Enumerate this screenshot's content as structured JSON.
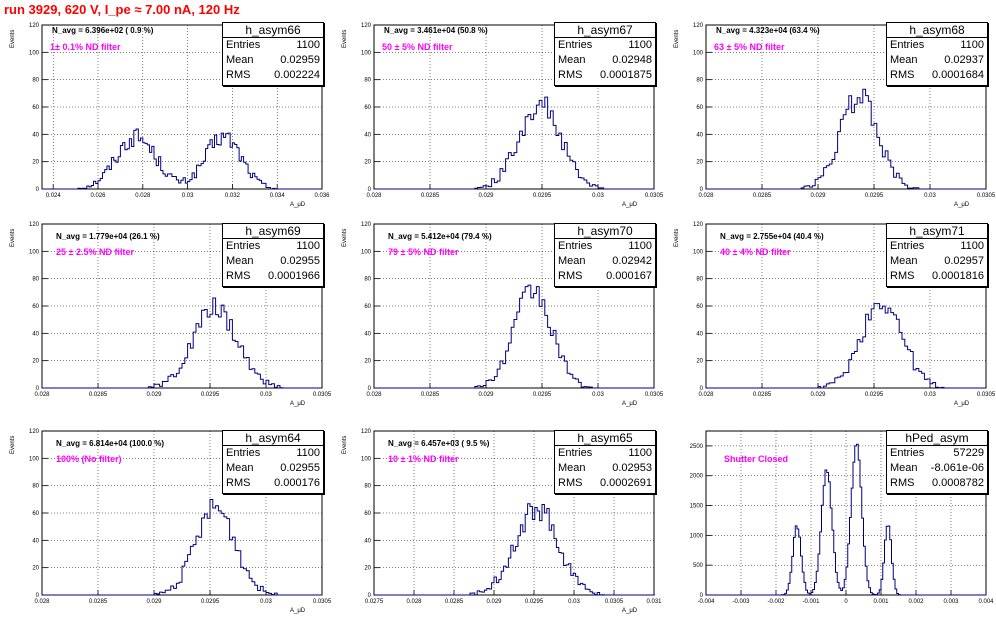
{
  "page": {
    "title": "run 3929,   620 V, I_pe ≈ 7.00 nA, 120 Hz"
  },
  "chart_data": [
    {
      "type": "histogram",
      "hist_name": "h_asym66",
      "stats": {
        "entries_label": "Entries",
        "entries": "1100",
        "mean_label": "Mean",
        "mean": "0.02959",
        "rms_label": "RMS",
        "rms": "0.002224"
      },
      "n_avg_text": "N_avg = 6.396e+02 ( 0.9 %)",
      "filter_text": "1± 0.1% ND filter",
      "xlabel": "A_μD",
      "ylabel": "Events",
      "xlim": [
        0.0235,
        0.036
      ],
      "ylim": [
        0,
        120
      ],
      "xticks": [
        "0.024",
        "0.026",
        "0.028",
        "0.03",
        "0.032",
        "0.034",
        "0.036"
      ],
      "yticks": [
        "0",
        "20",
        "40",
        "60",
        "80",
        "100",
        "120"
      ],
      "xtick_values": [
        0.024,
        0.026,
        0.028,
        0.03,
        0.032,
        0.034,
        0.036
      ],
      "ytick_values": [
        0,
        20,
        40,
        60,
        80,
        100,
        120
      ],
      "peaks": [
        {
          "center": 0.0277,
          "sigma": 0.0009,
          "height": 38
        },
        {
          "center": 0.0316,
          "sigma": 0.0008,
          "height": 38
        }
      ],
      "bin_width": 0.0001
    },
    {
      "type": "histogram",
      "hist_name": "h_asym67",
      "stats": {
        "entries_label": "Entries",
        "entries": "1100",
        "mean_label": "Mean",
        "mean": "0.02948",
        "rms_label": "RMS",
        "rms": "0.0001875"
      },
      "n_avg_text": "N_avg = 3.461e+04 (50.8 %)",
      "filter_text": "50 ± 5% ND filter",
      "xlabel": "A_μD",
      "ylabel": "Events",
      "xlim": [
        0.028,
        0.0305
      ],
      "ylim": [
        0,
        120
      ],
      "xticks": [
        "0.028",
        "0.0285",
        "0.029",
        "0.0295",
        "0.03",
        "0.0305"
      ],
      "yticks": [
        "0",
        "20",
        "40",
        "60",
        "80",
        "100",
        "120"
      ],
      "xtick_values": [
        0.028,
        0.0285,
        0.029,
        0.0295,
        0.03,
        0.0305
      ],
      "ytick_values": [
        0,
        20,
        40,
        60,
        80,
        100,
        120
      ],
      "peaks": [
        {
          "center": 0.02948,
          "sigma": 0.000187,
          "height": 62
        }
      ],
      "bin_width": 2.5e-05
    },
    {
      "type": "histogram",
      "hist_name": "h_asym68",
      "stats": {
        "entries_label": "Entries",
        "entries": "1100",
        "mean_label": "Mean",
        "mean": "0.02937",
        "rms_label": "RMS",
        "rms": "0.0001684"
      },
      "n_avg_text": "N_avg = 4.323e+04 (63.4 %)",
      "filter_text": "63 ± 5% ND filter",
      "xlabel": "A_μD",
      "ylabel": "Events",
      "xlim": [
        0.028,
        0.0305
      ],
      "ylim": [
        0,
        120
      ],
      "xticks": [
        "0.028",
        "0.0285",
        "0.029",
        "0.0295",
        "0.03",
        "0.0305"
      ],
      "yticks": [
        "0",
        "20",
        "40",
        "60",
        "80",
        "100",
        "120"
      ],
      "xtick_values": [
        0.028,
        0.0285,
        0.029,
        0.0295,
        0.03,
        0.0305
      ],
      "ytick_values": [
        0,
        20,
        40,
        60,
        80,
        100,
        120
      ],
      "peaks": [
        {
          "center": 0.02937,
          "sigma": 0.000168,
          "height": 68
        }
      ],
      "bin_width": 2.5e-05
    },
    {
      "type": "histogram",
      "hist_name": "h_asym69",
      "stats": {
        "entries_label": "Entries",
        "entries": "1100",
        "mean_label": "Mean",
        "mean": "0.02955",
        "rms_label": "RMS",
        "rms": "0.0001966"
      },
      "n_avg_text": "N_avg = 1.779e+04 (26.1 %)",
      "filter_text": "25 ± 2.5% ND filter",
      "xlabel": "A_μD",
      "ylabel": "Events",
      "xlim": [
        0.028,
        0.0305
      ],
      "ylim": [
        0,
        120
      ],
      "xticks": [
        "0.028",
        "0.0285",
        "0.029",
        "0.0295",
        "0.03",
        "0.0305"
      ],
      "yticks": [
        "0",
        "20",
        "40",
        "60",
        "80",
        "100",
        "120"
      ],
      "xtick_values": [
        0.028,
        0.0285,
        0.029,
        0.0295,
        0.03,
        0.0305
      ],
      "ytick_values": [
        0,
        20,
        40,
        60,
        80,
        100,
        120
      ],
      "peaks": [
        {
          "center": 0.02955,
          "sigma": 0.000197,
          "height": 58
        }
      ],
      "bin_width": 2.5e-05
    },
    {
      "type": "histogram",
      "hist_name": "h_asym70",
      "stats": {
        "entries_label": "Entries",
        "entries": "1100",
        "mean_label": "Mean",
        "mean": "0.02942",
        "rms_label": "RMS",
        "rms": "0.000167"
      },
      "n_avg_text": "N_avg = 5.412e+04 (79.4 %)",
      "filter_text": "79 ± 5% ND filter",
      "xlabel": "A_μD",
      "ylabel": "Events",
      "xlim": [
        0.028,
        0.0305
      ],
      "ylim": [
        0,
        120
      ],
      "xticks": [
        "0.028",
        "0.0285",
        "0.029",
        "0.0295",
        "0.03",
        "0.0305"
      ],
      "yticks": [
        "0",
        "20",
        "40",
        "60",
        "80",
        "100",
        "120"
      ],
      "xtick_values": [
        0.028,
        0.0285,
        0.029,
        0.0295,
        0.03,
        0.0305
      ],
      "ytick_values": [
        0,
        20,
        40,
        60,
        80,
        100,
        120
      ],
      "peaks": [
        {
          "center": 0.02942,
          "sigma": 0.000167,
          "height": 72
        }
      ],
      "bin_width": 2.5e-05
    },
    {
      "type": "histogram",
      "hist_name": "h_asym71",
      "stats": {
        "entries_label": "Entries",
        "entries": "1100",
        "mean_label": "Mean",
        "mean": "0.02957",
        "rms_label": "RMS",
        "rms": "0.0001816"
      },
      "n_avg_text": "N_avg = 2.755e+04 (40.4 %)",
      "filter_text": "40 ± 4% ND filter",
      "xlabel": "A_μD",
      "ylabel": "Events",
      "xlim": [
        0.028,
        0.0305
      ],
      "ylim": [
        0,
        120
      ],
      "xticks": [
        "0.028",
        "0.0285",
        "0.029",
        "0.0295",
        "0.03",
        "0.0305"
      ],
      "yticks": [
        "0",
        "20",
        "40",
        "60",
        "80",
        "100",
        "120"
      ],
      "xtick_values": [
        0.028,
        0.0285,
        0.029,
        0.0295,
        0.03,
        0.0305
      ],
      "ytick_values": [
        0,
        20,
        40,
        60,
        80,
        100,
        120
      ],
      "peaks": [
        {
          "center": 0.02957,
          "sigma": 0.000182,
          "height": 64
        }
      ],
      "bin_width": 2.5e-05
    },
    {
      "type": "histogram",
      "hist_name": "h_asym64",
      "stats": {
        "entries_label": "Entries",
        "entries": "1100",
        "mean_label": "Mean",
        "mean": "0.02955",
        "rms_label": "RMS",
        "rms": "0.000176"
      },
      "n_avg_text": "N_avg = 6.814e+04 (100.0 %)",
      "filter_text": "100% (No filter)",
      "xlabel": "A_μD",
      "ylabel": "Events",
      "xlim": [
        0.028,
        0.0305
      ],
      "ylim": [
        0,
        120
      ],
      "xticks": [
        "0.028",
        "0.0285",
        "0.029",
        "0.0295",
        "0.03",
        "0.0305"
      ],
      "yticks": [
        "0",
        "20",
        "40",
        "60",
        "80",
        "100",
        "120"
      ],
      "xtick_values": [
        0.028,
        0.0285,
        0.029,
        0.0295,
        0.03,
        0.0305
      ],
      "ytick_values": [
        0,
        20,
        40,
        60,
        80,
        100,
        120
      ],
      "peaks": [
        {
          "center": 0.02955,
          "sigma": 0.000176,
          "height": 64
        }
      ],
      "bin_width": 2.5e-05
    },
    {
      "type": "histogram",
      "hist_name": "h_asym65",
      "stats": {
        "entries_label": "Entries",
        "entries": "1100",
        "mean_label": "Mean",
        "mean": "0.02953",
        "rms_label": "RMS",
        "rms": "0.0002691"
      },
      "n_avg_text": "N_avg = 6.457e+03 ( 9.5 %)",
      "filter_text": "10 ± 1% ND filter",
      "xlabel": "A_μD",
      "ylabel": "Events",
      "xlim": [
        0.0275,
        0.031
      ],
      "ylim": [
        0,
        120
      ],
      "xticks": [
        "0.0275",
        "0.028",
        "0.0285",
        "0.029",
        "0.0295",
        "0.03",
        "0.0305",
        "0.031"
      ],
      "yticks": [
        "0",
        "20",
        "40",
        "60",
        "80",
        "100",
        "120"
      ],
      "xtick_values": [
        0.0275,
        0.028,
        0.0285,
        0.029,
        0.0295,
        0.03,
        0.0305,
        0.031
      ],
      "ytick_values": [
        0,
        20,
        40,
        60,
        80,
        100,
        120
      ],
      "peaks": [
        {
          "center": 0.02953,
          "sigma": 0.000269,
          "height": 64
        }
      ],
      "bin_width": 3e-05
    },
    {
      "type": "histogram",
      "hist_name": "hPed_asym",
      "stats": {
        "entries_label": "Entries",
        "entries": "57229",
        "mean_label": "Mean",
        "mean": "-8.061e-06",
        "rms_label": "RMS",
        "rms": "0.0008782"
      },
      "n_avg_text": "",
      "filter_text": "Shutter Closed",
      "xlabel": "",
      "ylabel": "",
      "xlim": [
        -0.004,
        0.004
      ],
      "ylim": [
        0,
        2750
      ],
      "xticks": [
        "-0.004",
        "-0.003",
        "-0.002",
        "-0.001",
        "0",
        "0.001",
        "0.002",
        "0.003",
        "0.004"
      ],
      "yticks": [
        "0",
        "500",
        "1000",
        "1500",
        "2000",
        "2500"
      ],
      "xtick_values": [
        -0.004,
        -0.003,
        -0.002,
        -0.001,
        0,
        0.001,
        0.002,
        0.003,
        0.004
      ],
      "ytick_values": [
        0,
        500,
        1000,
        1500,
        2000,
        2500
      ],
      "peaks": [
        {
          "center": -0.0014,
          "sigma": 0.00012,
          "height": 1150
        },
        {
          "center": -0.00055,
          "sigma": 0.00015,
          "height": 2100
        },
        {
          "center": 0.0003,
          "sigma": 0.00015,
          "height": 2550
        },
        {
          "center": 0.0012,
          "sigma": 0.0001,
          "height": 1200
        }
      ],
      "bin_width": 5e-05
    }
  ]
}
